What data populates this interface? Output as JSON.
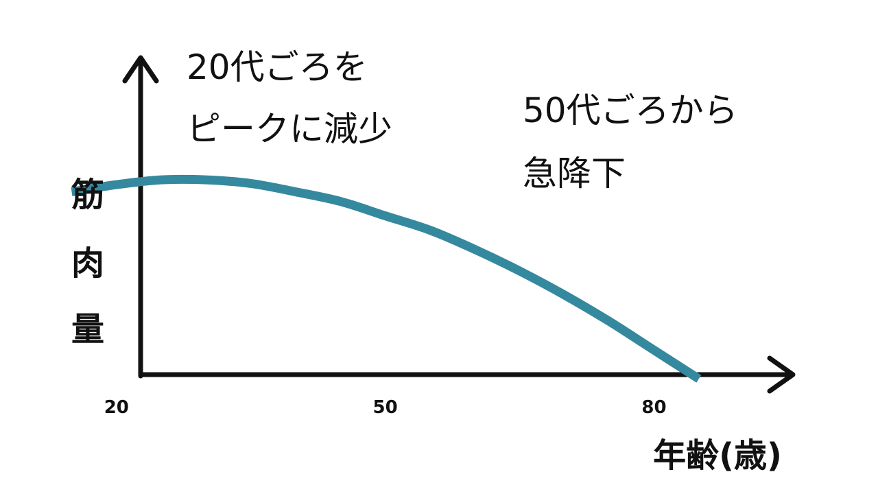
{
  "chart_data": {
    "type": "line",
    "x": [
      15,
      20,
      25,
      30,
      35,
      40,
      45,
      50,
      55,
      60,
      65,
      70,
      75,
      80,
      85
    ],
    "series": [
      {
        "values": [
          90,
          93,
          95,
          95,
          93.5,
          90,
          86,
          80,
          74,
          66,
          57,
          47,
          36,
          24,
          12
        ],
        "color": "#35899e"
      }
    ],
    "xticks": [
      "20",
      "50",
      "80"
    ],
    "xtick_values": [
      20,
      50,
      80
    ],
    "xlim": [
      7,
      105
    ],
    "ylim": [
      -36,
      170
    ],
    "xlabel": "年齢(歳)",
    "ylabel_chars": [
      "筋",
      "肉",
      "量"
    ],
    "annotations": [
      {
        "lines": [
          "20代ごろを",
          "ピークに減少"
        ]
      },
      {
        "lines": [
          "50代ごろから",
          "急降下"
        ]
      }
    ],
    "grid": false,
    "legend": "none",
    "axis_color": "#111111"
  }
}
